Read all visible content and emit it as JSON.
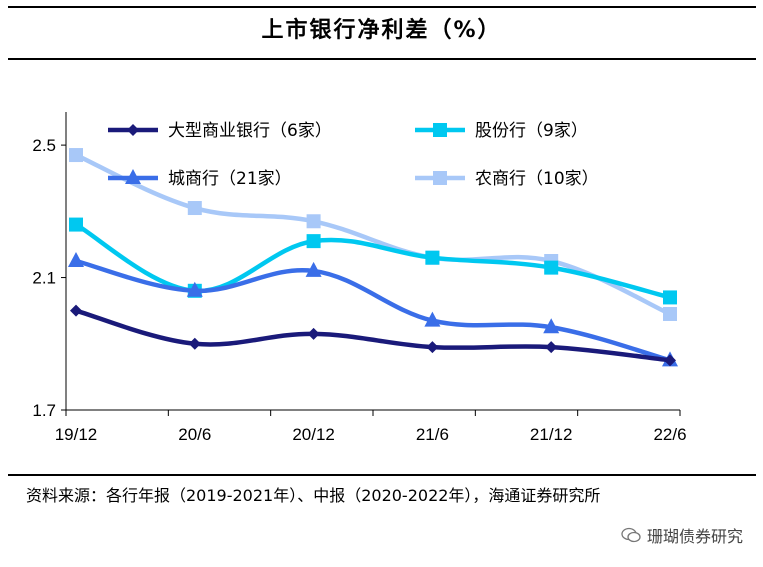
{
  "header": {
    "title": "上市银行净利差（%）"
  },
  "source": {
    "text": "资料来源：各行年报（2019-2021年）、中报（2020-2022年），海通证券研究所"
  },
  "watermark": {
    "text": "珊瑚债券研究"
  },
  "colors": {
    "series_large": "#1a1a7a",
    "series_joint": "#00c8f0",
    "series_city": "#3a6ee8",
    "series_rural": "#a8c8f8"
  },
  "chart_data": {
    "type": "line",
    "title": "上市银行净利差（%）",
    "xlabel": "",
    "ylabel": "",
    "categories": [
      "19/12",
      "20/6",
      "20/12",
      "21/6",
      "21/12",
      "22/6"
    ],
    "ylim": [
      1.7,
      2.6
    ],
    "yticks": [
      "1.7",
      "2.1",
      "2.5"
    ],
    "legend_position": "top",
    "series": [
      {
        "name": "大型商业银行（6家）",
        "values": [
          2.0,
          1.9,
          1.93,
          1.89,
          1.89,
          1.85
        ],
        "marker": "diamond",
        "color": "#1a1a7a"
      },
      {
        "name": "股份行（9家）",
        "values": [
          2.26,
          2.06,
          2.21,
          2.16,
          2.13,
          2.04
        ],
        "marker": "square",
        "color": "#00c8f0"
      },
      {
        "name": "城商行（21家）",
        "values": [
          2.15,
          2.06,
          2.12,
          1.97,
          1.95,
          1.85
        ],
        "marker": "triangle",
        "color": "#3a6ee8"
      },
      {
        "name": "农商行（10家）",
        "values": [
          2.47,
          2.31,
          2.27,
          2.16,
          2.15,
          1.99
        ],
        "marker": "square",
        "color": "#a8c8f8"
      }
    ]
  }
}
